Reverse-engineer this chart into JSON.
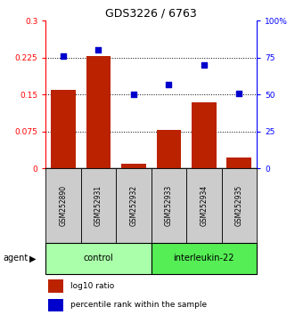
{
  "title": "GDS3226 / 6763",
  "samples": [
    "GSM252890",
    "GSM252931",
    "GSM252932",
    "GSM252933",
    "GSM252934",
    "GSM252935"
  ],
  "log10_ratio": [
    0.16,
    0.228,
    0.01,
    0.078,
    0.135,
    0.022
  ],
  "percentile_rank": [
    76,
    80,
    50,
    57,
    70,
    51
  ],
  "bar_color": "#bb2200",
  "dot_color": "#0000cc",
  "left_ylim": [
    0,
    0.3
  ],
  "right_ylim": [
    0,
    100
  ],
  "left_yticks": [
    0,
    0.075,
    0.15,
    0.225,
    0.3
  ],
  "left_yticklabels": [
    "0",
    "0.075",
    "0.15",
    "0.225",
    "0.3"
  ],
  "right_yticks": [
    0,
    25,
    50,
    75,
    100
  ],
  "right_yticklabels": [
    "0",
    "25",
    "50",
    "75",
    "100%"
  ],
  "hlines": [
    0.075,
    0.15,
    0.225
  ],
  "bar_width": 0.7,
  "sample_box_color": "#cccccc",
  "control_color": "#aaffaa",
  "il22_color": "#55ee55",
  "agent_label": "agent",
  "legend_entries": [
    "log10 ratio",
    "percentile rank within the sample"
  ],
  "groups": [
    {
      "label": "control",
      "start": 0,
      "end": 2
    },
    {
      "label": "interleukin-22",
      "start": 3,
      "end": 5
    }
  ]
}
